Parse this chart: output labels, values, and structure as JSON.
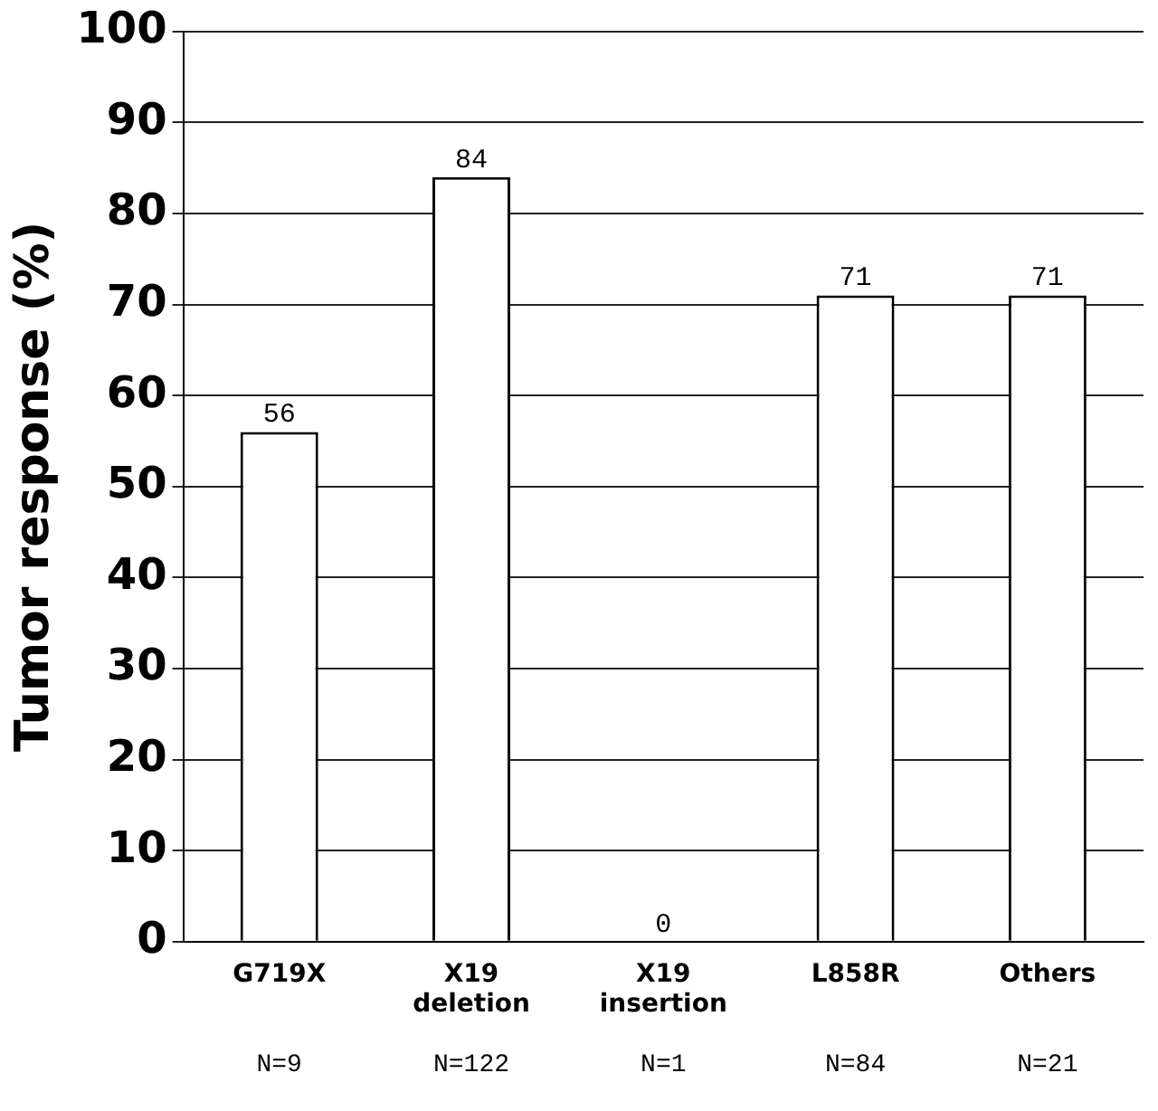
{
  "chart_data": {
    "type": "bar",
    "ylabel": "Tumor response (%)",
    "categories": [
      "G719X",
      "X19 deletion",
      "X19 insertion",
      "L858R",
      "Others"
    ],
    "values": [
      56,
      84,
      0,
      71,
      71
    ],
    "color": "#ffffff",
    "ylim": [
      0,
      100
    ],
    "yticks": [
      0,
      10,
      20,
      30,
      40,
      50,
      60,
      70,
      80,
      90,
      100
    ],
    "grid": "y",
    "legend": false,
    "data_labels": true,
    "annotations": [
      "N=9",
      "N=122",
      "N=1",
      "N=84",
      "N=21"
    ]
  }
}
